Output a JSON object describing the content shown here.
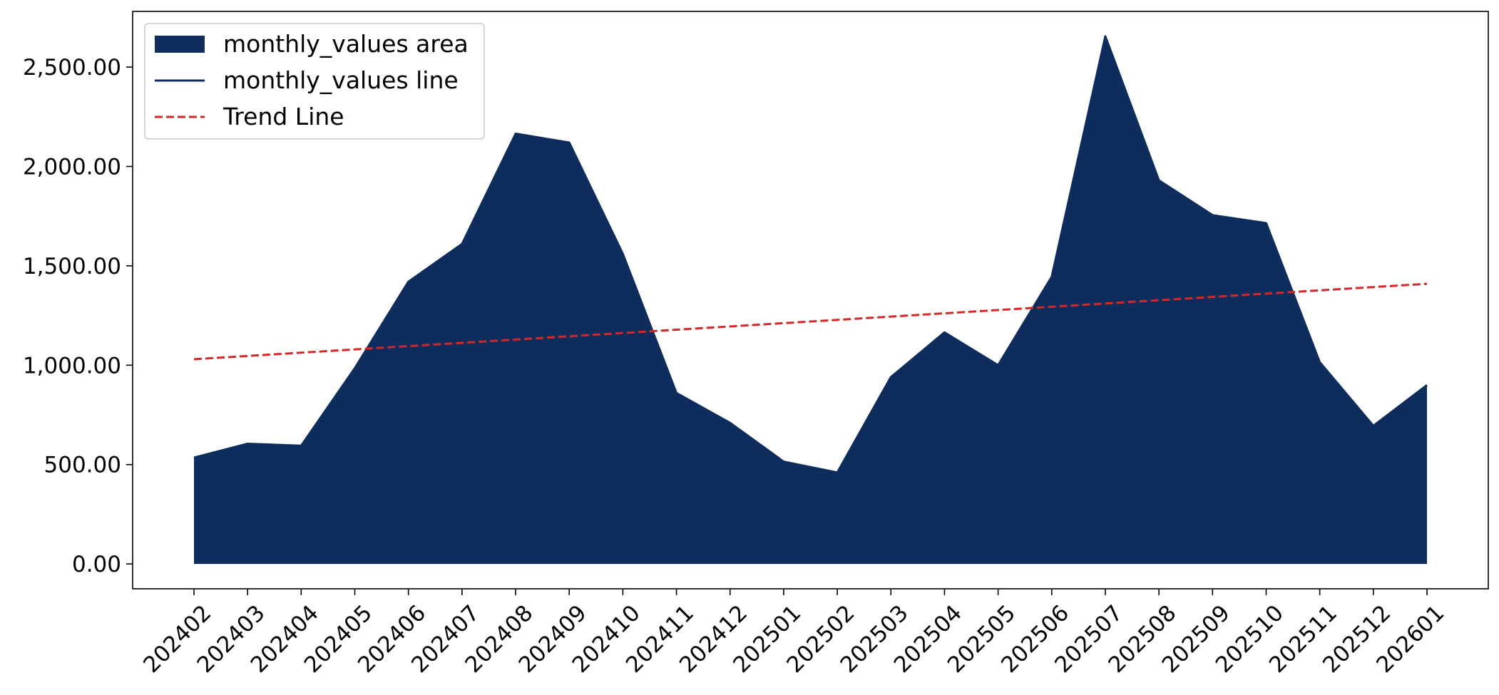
{
  "chart_data": {
    "type": "area",
    "title": "",
    "xlabel": "",
    "ylabel": "",
    "categories": [
      "202402",
      "202403",
      "202404",
      "202405",
      "202406",
      "202407",
      "202408",
      "202409",
      "202410",
      "202411",
      "202412",
      "202501",
      "202502",
      "202503",
      "202504",
      "202505",
      "202506",
      "202507",
      "202508",
      "202509",
      "202510",
      "202511",
      "202512",
      "202601"
    ],
    "series": [
      {
        "name": "monthly_values area",
        "kind": "area",
        "color": "#0f2d5c",
        "values": [
          535,
          605,
          595,
          985,
          1420,
          1610,
          2165,
          2120,
          1560,
          860,
          710,
          515,
          460,
          940,
          1165,
          1000,
          1445,
          2655,
          1930,
          1755,
          1715,
          1015,
          695,
          900
        ]
      },
      {
        "name": "monthly_values line",
        "kind": "line",
        "color": "#0f2d5c",
        "values": [
          535,
          605,
          595,
          985,
          1420,
          1610,
          2165,
          2120,
          1560,
          860,
          710,
          515,
          460,
          940,
          1165,
          1000,
          1445,
          2655,
          1930,
          1755,
          1715,
          1015,
          695,
          900
        ]
      },
      {
        "name": "Trend Line",
        "kind": "dashed-line",
        "color": "#d62728",
        "values": [
          1030,
          1046.5,
          1063,
          1079.5,
          1096,
          1112.5,
          1129,
          1145.5,
          1162,
          1178.5,
          1195,
          1211.5,
          1228,
          1244.5,
          1261,
          1277.5,
          1294,
          1310.5,
          1327,
          1343.5,
          1360,
          1376.5,
          1393,
          1409.5
        ]
      }
    ],
    "ylim": [
      -125,
      2780
    ],
    "yticks": [
      0,
      500,
      1000,
      1500,
      2000,
      2500
    ],
    "ytick_labels": [
      "0.00",
      "500.00",
      "1,000.00",
      "1,500.00",
      "2,000.00",
      "2,500.00"
    ],
    "x_tick_rotation": 45,
    "grid": false,
    "legend": {
      "placement": "top-left",
      "entries": [
        "monthly_values area",
        "monthly_values line",
        "Trend Line"
      ]
    }
  }
}
